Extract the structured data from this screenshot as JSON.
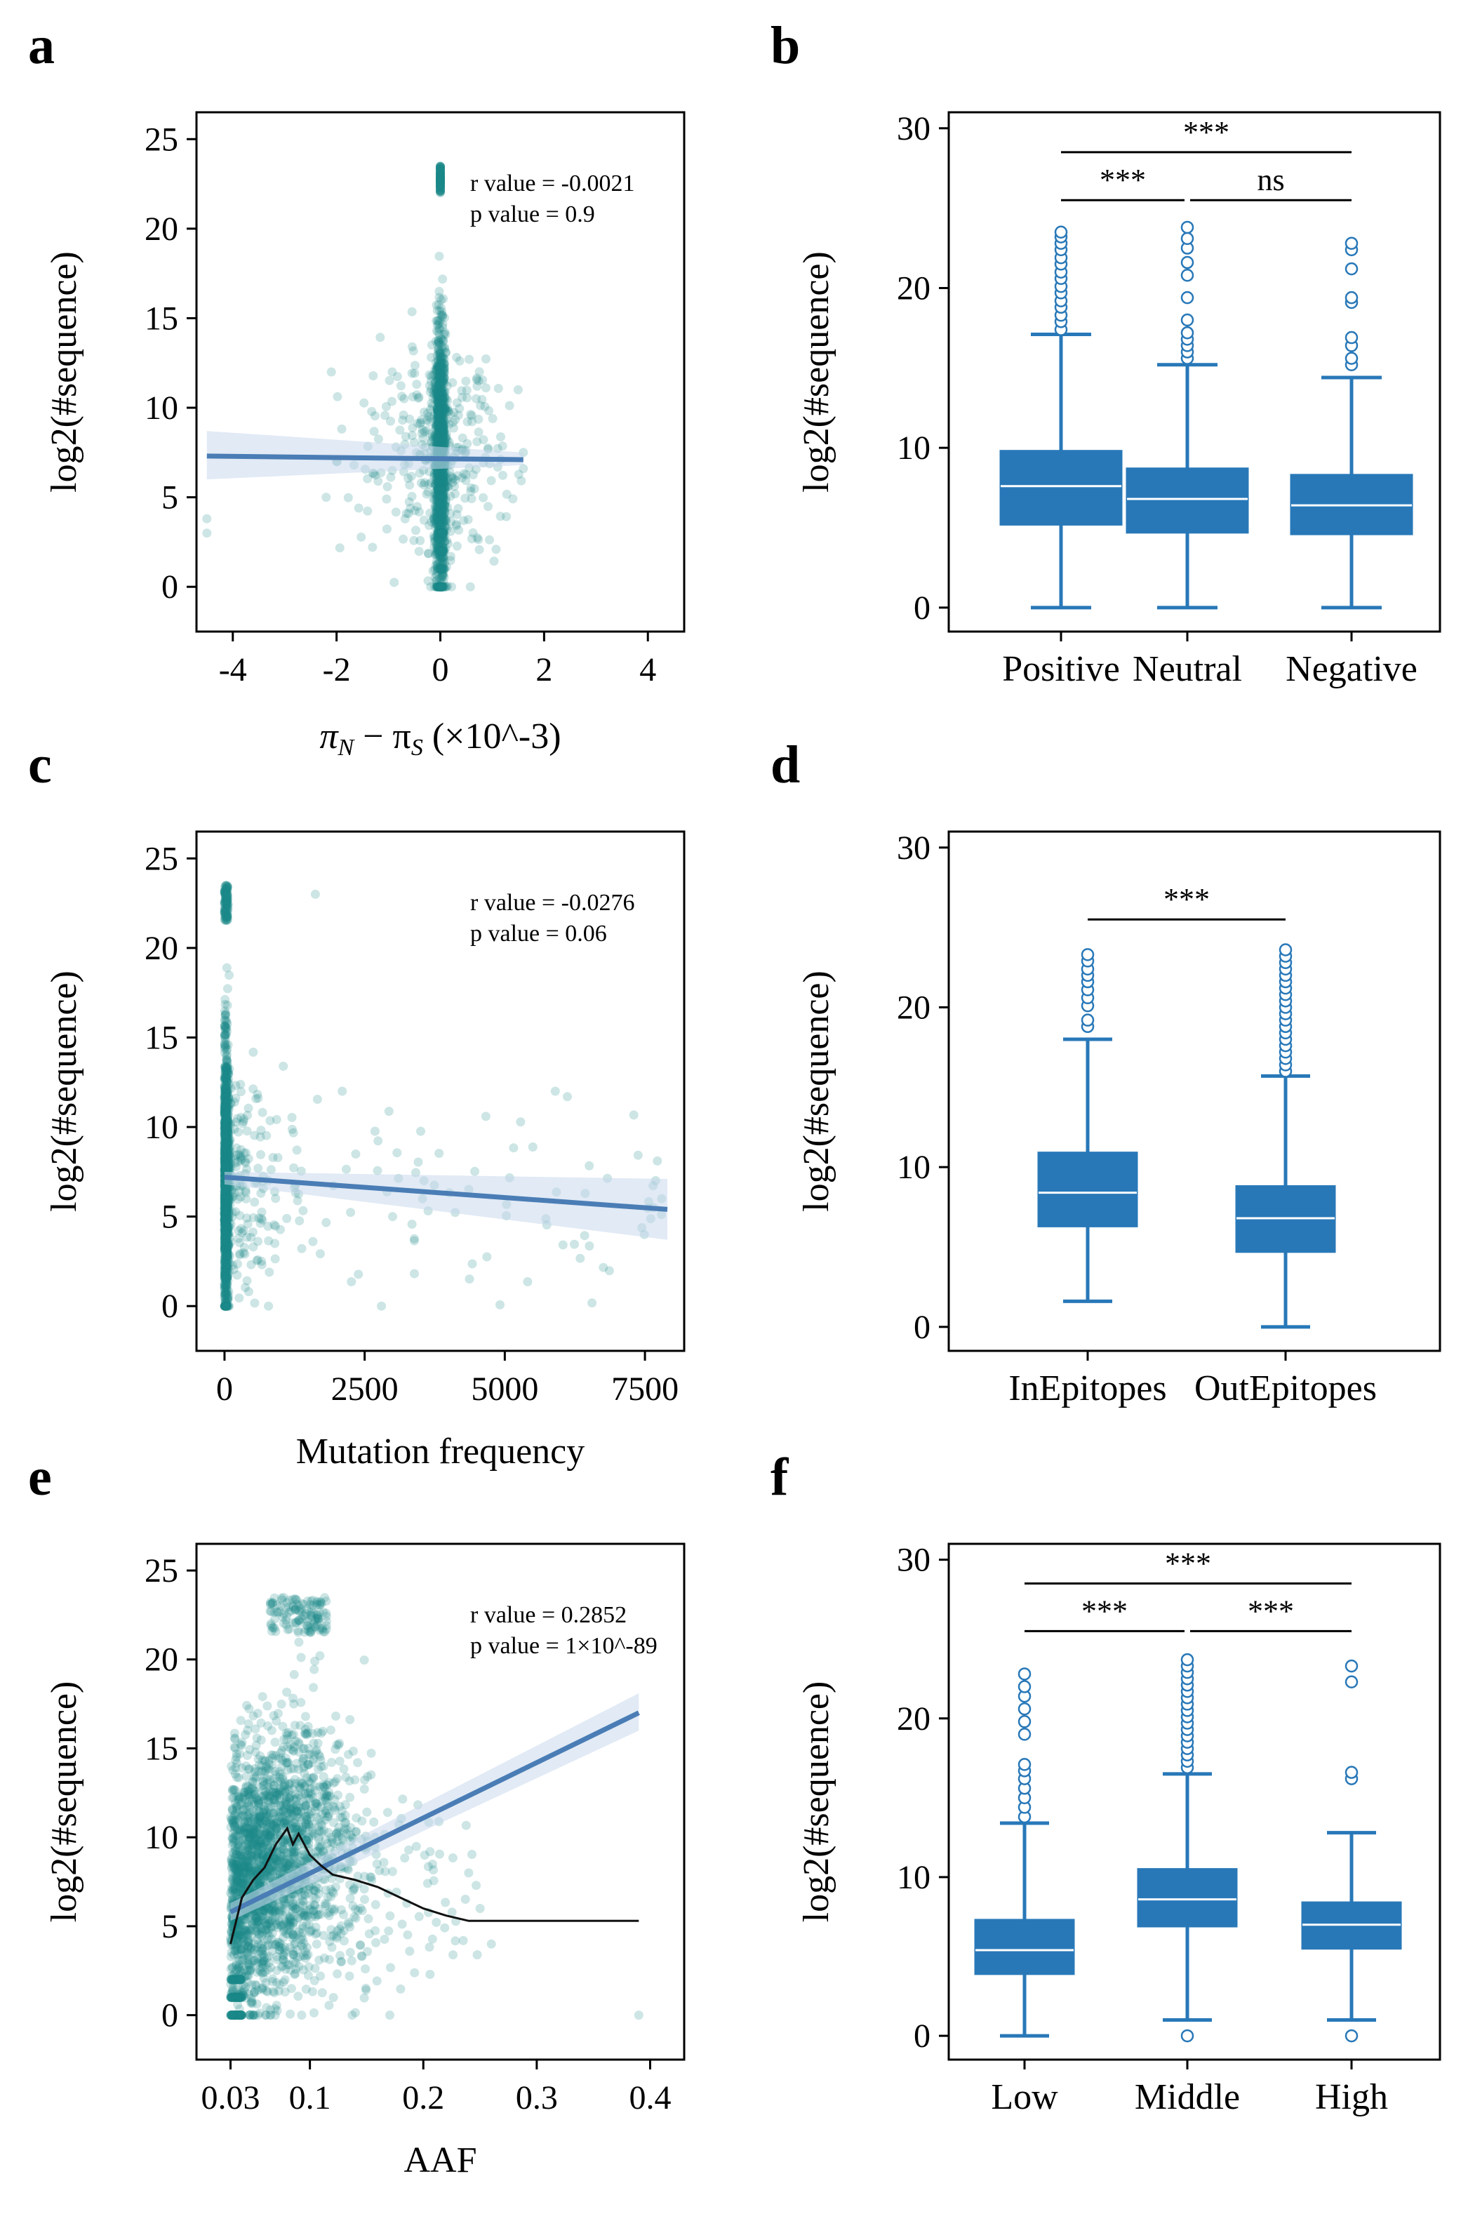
{
  "figure": {
    "colors": {
      "scatter": "#1a8a8a",
      "regression": "#4a7db5",
      "ci_band": "#c9d9ec",
      "box": "#2878b8",
      "median": "#ffffff",
      "moving_avg": "#111111"
    }
  },
  "chart_data": [
    {
      "panel": "a",
      "type": "scatter",
      "xlabel_main": "π",
      "xlabel_sub1": "N",
      "xlabel_minus": " − π",
      "xlabel_sub2": "S",
      "xlabel_suffix": " (×10^-3)",
      "ylabel": "log2(#sequence)",
      "xlim": [
        -4.7,
        4.7
      ],
      "ylim": [
        -2.5,
        26.5
      ],
      "xticks": [
        -4,
        -2,
        0,
        2,
        4
      ],
      "xtick_labels": [
        "-4",
        "-2",
        "0",
        "2",
        "4"
      ],
      "yticks": [
        0,
        5,
        10,
        15,
        20,
        25
      ],
      "ytick_labels": [
        "0",
        "5",
        "10",
        "15",
        "20",
        "25"
      ],
      "annotation_r": "r value = -0.0021",
      "annotation_p": "p value = 0.9",
      "regression": {
        "x0": -4.5,
        "y0": 7.3,
        "x1": 1.6,
        "y1": 7.1
      },
      "ci": {
        "lower_left": 6.0,
        "upper_left": 8.7,
        "lower_right": 6.8,
        "upper_right": 7.5
      },
      "points": {
        "description": "dense vertical cluster at x≈0 spanning y 0–23, sparse spread x −2…1.6"
      }
    },
    {
      "panel": "b",
      "type": "box",
      "ylabel": "log2(#sequence)",
      "ylim": [
        -1.5,
        31
      ],
      "yticks": [
        0,
        10,
        20,
        30
      ],
      "ytick_labels": [
        "0",
        "10",
        "20",
        "30"
      ],
      "categories": [
        "Positive",
        "Neutral",
        "Negative"
      ],
      "boxes": [
        {
          "name": "Positive",
          "whislo": 0,
          "q1": 5.2,
          "med": 7.6,
          "q3": 9.8,
          "whishi": 17.1,
          "fliers": [
            17.4,
            17.9,
            18.3,
            18.8,
            19.2,
            19.7,
            20.1,
            20.6,
            21.0,
            21.5,
            21.9,
            22.4,
            22.8,
            23.2,
            23.5
          ]
        },
        {
          "name": "Neutral",
          "whislo": 0,
          "q1": 4.7,
          "med": 6.8,
          "q3": 8.7,
          "whishi": 15.2,
          "fliers": [
            15.6,
            16.0,
            16.4,
            16.8,
            17.2,
            18.0,
            19.4,
            20.8,
            21.6,
            22.5,
            23.1,
            23.8
          ]
        },
        {
          "name": "Negative",
          "whislo": 0,
          "q1": 4.6,
          "med": 6.4,
          "q3": 8.3,
          "whishi": 14.4,
          "fliers": [
            15.2,
            15.6,
            16.4,
            16.9,
            19.1,
            19.4,
            21.2,
            22.4,
            22.8
          ]
        }
      ],
      "significance": [
        {
          "from": 0,
          "to": 2,
          "level": 2,
          "label": "***"
        },
        {
          "from": 0,
          "to": 1,
          "level": 1,
          "label": "***"
        },
        {
          "from": 1,
          "to": 2,
          "level": 1,
          "label": "ns"
        }
      ]
    },
    {
      "panel": "c",
      "type": "scatter",
      "xlabel": "Mutation frequency",
      "ylabel": "log2(#sequence)",
      "xlim": [
        -500,
        8200
      ],
      "ylim": [
        -2.5,
        26.5
      ],
      "xticks": [
        0,
        2500,
        5000,
        7500
      ],
      "xtick_labels": [
        "0",
        "2500",
        "5000",
        "7500"
      ],
      "yticks": [
        0,
        5,
        10,
        15,
        20,
        25
      ],
      "ytick_labels": [
        "0",
        "5",
        "10",
        "15",
        "20",
        "25"
      ],
      "annotation_r": "r value = -0.0276",
      "annotation_p": "p value = 0.06",
      "regression": {
        "x0": 0,
        "y0": 7.2,
        "x1": 7900,
        "y1": 5.4
      },
      "ci": {
        "lower_left": 6.8,
        "upper_left": 7.5,
        "lower_right": 3.7,
        "upper_right": 7.1
      },
      "points": {
        "description": "dense vertical cluster at x≈0–100 spanning y 0–23, sparse points up to x≈7800"
      }
    },
    {
      "panel": "d",
      "type": "box",
      "ylabel": "log2(#sequence)",
      "ylim": [
        -1.5,
        31
      ],
      "yticks": [
        0,
        10,
        20,
        30
      ],
      "ytick_labels": [
        "0",
        "10",
        "20",
        "30"
      ],
      "categories": [
        "InEpitopes",
        "OutEpitopes"
      ],
      "boxes": [
        {
          "name": "InEpitopes",
          "whislo": 1.6,
          "q1": 6.3,
          "med": 8.4,
          "q3": 10.9,
          "whishi": 18.0,
          "fliers": [
            18.8,
            19.2,
            20.1,
            20.6,
            21.1,
            21.6,
            22.0,
            22.4,
            22.9,
            23.3
          ]
        },
        {
          "name": "OutEpitopes",
          "whislo": 0,
          "q1": 4.7,
          "med": 6.8,
          "q3": 8.8,
          "whishi": 15.7,
          "fliers": [
            16.0,
            16.4,
            16.8,
            17.2,
            17.6,
            18.0,
            18.4,
            18.8,
            19.2,
            19.6,
            20.0,
            20.4,
            20.8,
            21.2,
            21.6,
            22.0,
            22.4,
            22.8,
            23.2,
            23.6
          ]
        }
      ],
      "significance": [
        {
          "from": 0,
          "to": 1,
          "level": 1,
          "label": "***"
        }
      ]
    },
    {
      "panel": "e",
      "type": "scatter",
      "xlabel": "AAF",
      "ylabel": "log2(#sequence)",
      "xlim": [
        0.0,
        0.43
      ],
      "ylim": [
        -2.5,
        26.5
      ],
      "xticks": [
        0.03,
        0.1,
        0.2,
        0.3,
        0.4
      ],
      "xtick_labels": [
        "0.03",
        "0.1",
        "0.2",
        "0.3",
        "0.4"
      ],
      "yticks": [
        0,
        5,
        10,
        15,
        20,
        25
      ],
      "ytick_labels": [
        "0",
        "5",
        "10",
        "15",
        "20",
        "25"
      ],
      "annotation_r": "r value = 0.2852",
      "annotation_p": "p value = 1×10^-89",
      "regression": {
        "x0": 0.03,
        "y0": 5.8,
        "x1": 0.39,
        "y1": 17.0
      },
      "ci": {
        "lower_left": 5.3,
        "upper_left": 6.3,
        "lower_right": 16.0,
        "upper_right": 18.1
      },
      "moving_average": [
        [
          0.03,
          4.0
        ],
        [
          0.04,
          6.6
        ],
        [
          0.05,
          7.6
        ],
        [
          0.06,
          8.3
        ],
        [
          0.07,
          9.6
        ],
        [
          0.08,
          10.5
        ],
        [
          0.085,
          9.6
        ],
        [
          0.09,
          10.2
        ],
        [
          0.1,
          9.0
        ],
        [
          0.11,
          8.4
        ],
        [
          0.12,
          7.9
        ],
        [
          0.14,
          7.6
        ],
        [
          0.16,
          7.2
        ],
        [
          0.18,
          6.6
        ],
        [
          0.2,
          6.0
        ],
        [
          0.22,
          5.6
        ],
        [
          0.24,
          5.3
        ],
        [
          0.3,
          5.3
        ],
        [
          0.39,
          5.3
        ]
      ],
      "points": {
        "description": "dense cloud between AAF 0.03–0.15, y 0–23, thinning towards 0.25; outlier at 0.39,0"
      }
    },
    {
      "panel": "f",
      "type": "box",
      "ylabel": "log2(#sequence)",
      "ylim": [
        -1.5,
        31
      ],
      "yticks": [
        0,
        10,
        20,
        30
      ],
      "ytick_labels": [
        "0",
        "10",
        "20",
        "30"
      ],
      "categories": [
        "Low",
        "Middle",
        "High"
      ],
      "boxes": [
        {
          "name": "Low",
          "whislo": 0,
          "q1": 3.9,
          "med": 5.4,
          "q3": 7.3,
          "whishi": 13.4,
          "fliers": [
            13.8,
            14.4,
            15.0,
            15.6,
            16.2,
            16.7,
            17.1,
            19.0,
            19.8,
            20.6,
            21.4,
            22.0,
            22.8
          ]
        },
        {
          "name": "Middle",
          "whislo": 1.0,
          "q1": 6.9,
          "med": 8.6,
          "q3": 10.5,
          "whishi": 16.5,
          "fliers": [
            0.0,
            16.9,
            17.3,
            17.7,
            18.1,
            18.5,
            18.9,
            19.3,
            19.7,
            20.1,
            20.5,
            20.9,
            21.3,
            21.7,
            22.1,
            22.5,
            22.9,
            23.3,
            23.7
          ]
        },
        {
          "name": "High",
          "whislo": 1.0,
          "q1": 5.5,
          "med": 7.0,
          "q3": 8.4,
          "whishi": 12.8,
          "fliers": [
            0.0,
            16.2,
            16.6,
            22.3,
            23.3
          ]
        }
      ],
      "significance": [
        {
          "from": 0,
          "to": 2,
          "level": 2,
          "label": "***"
        },
        {
          "from": 0,
          "to": 1,
          "level": 1,
          "label": "***"
        },
        {
          "from": 1,
          "to": 2,
          "level": 1,
          "label": "***"
        }
      ]
    }
  ]
}
